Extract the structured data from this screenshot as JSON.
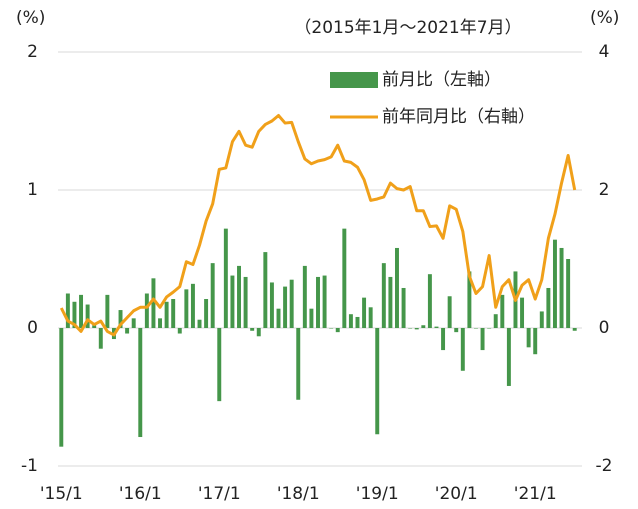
{
  "chart_data": {
    "type": "bar+line",
    "annotation": "（2015年1月～2021年7月）",
    "y_label": "(%)",
    "y2_label": "(%)",
    "categories": [
      "'15/1",
      null,
      null,
      null,
      null,
      null,
      null,
      null,
      null,
      null,
      null,
      null,
      "'16/1",
      null,
      null,
      null,
      null,
      null,
      null,
      null,
      null,
      null,
      null,
      null,
      "'17/1",
      null,
      null,
      null,
      null,
      null,
      null,
      null,
      null,
      null,
      null,
      null,
      "'18/1",
      null,
      null,
      null,
      null,
      null,
      null,
      null,
      null,
      null,
      null,
      null,
      "'19/1",
      null,
      null,
      null,
      null,
      null,
      null,
      null,
      null,
      null,
      null,
      null,
      "'20/1",
      null,
      null,
      null,
      null,
      null,
      null,
      null,
      null,
      null,
      null,
      null,
      "'21/1",
      null,
      null,
      null,
      null,
      null,
      null
    ],
    "ylim": [
      -1,
      2
    ],
    "yticks": [
      -1,
      0,
      1,
      2
    ],
    "y2lim": [
      -2,
      4
    ],
    "y2ticks": [
      -2,
      0,
      2,
      4
    ],
    "grid": true,
    "series": [
      {
        "name": "前月比（左軸）",
        "type": "bar",
        "axis": "y",
        "color": "#45964a",
        "values": [
          -0.86,
          0.25,
          0.19,
          0.24,
          0.17,
          0.02,
          -0.15,
          0.24,
          -0.08,
          0.13,
          -0.04,
          0.07,
          -0.79,
          0.25,
          0.36,
          0.07,
          0.19,
          0.21,
          -0.04,
          0.28,
          0.32,
          0.06,
          0.21,
          0.47,
          -0.53,
          0.72,
          0.38,
          0.45,
          0.37,
          -0.02,
          -0.06,
          0.55,
          0.33,
          0.14,
          0.3,
          0.35,
          -0.52,
          0.45,
          0.14,
          0.37,
          0.38,
          0.0,
          -0.03,
          0.72,
          0.1,
          0.08,
          0.22,
          0.15,
          -0.77,
          0.47,
          0.37,
          0.58,
          0.29,
          0.0,
          -0.01,
          0.02,
          0.39,
          0.01,
          -0.16,
          0.23,
          -0.03,
          -0.31,
          0.41,
          0.0,
          -0.16,
          0.0,
          0.1,
          0.24,
          -0.42,
          0.41,
          0.22,
          -0.14,
          -0.19,
          0.12,
          0.29,
          0.64,
          0.58,
          0.5,
          -0.02
        ]
      },
      {
        "name": "前年同月比（右軸）",
        "type": "line",
        "axis": "y2",
        "color": "#f0a01a",
        "values": [
          0.29,
          0.1,
          0.05,
          -0.05,
          0.12,
          0.05,
          0.1,
          -0.05,
          -0.1,
          0.05,
          0.15,
          0.25,
          0.3,
          0.3,
          0.42,
          0.3,
          0.45,
          0.52,
          0.6,
          0.96,
          0.92,
          1.2,
          1.55,
          1.8,
          2.3,
          2.32,
          2.7,
          2.85,
          2.65,
          2.62,
          2.85,
          2.95,
          3.0,
          3.08,
          2.97,
          2.98,
          2.7,
          2.45,
          2.38,
          2.42,
          2.44,
          2.48,
          2.65,
          2.42,
          2.4,
          2.33,
          2.15,
          1.85,
          1.87,
          1.9,
          2.1,
          2.02,
          2.0,
          2.05,
          1.7,
          1.7,
          1.47,
          1.48,
          1.3,
          1.77,
          1.72,
          1.4,
          0.75,
          0.5,
          0.6,
          1.05,
          0.3,
          0.6,
          0.7,
          0.4,
          0.62,
          0.7,
          0.42,
          0.7,
          1.3,
          1.65,
          2.1,
          2.5,
          2.0
        ]
      }
    ]
  }
}
